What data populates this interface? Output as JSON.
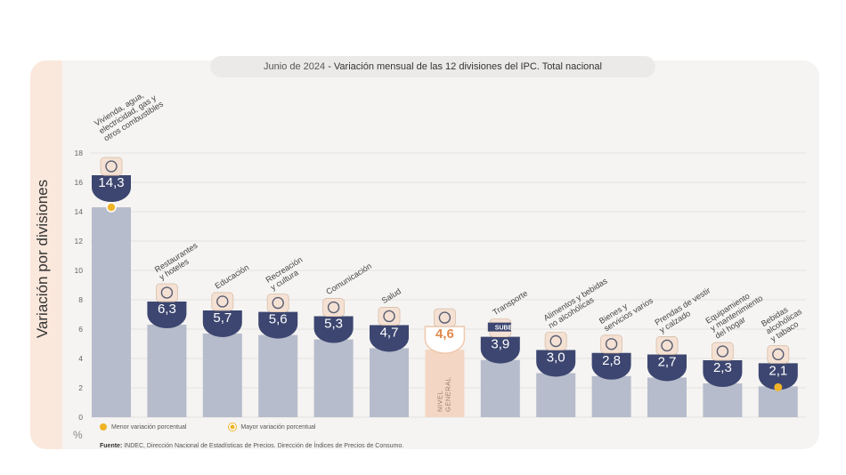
{
  "chart_data": {
    "type": "bar",
    "title_date": "Junio de 2024",
    "title_rest": " - Variación mensual de las 12 divisiones del IPC. Total nacional",
    "ylabel": "Variación por divisiones",
    "yunit": "%",
    "ylim": [
      0,
      18
    ],
    "yticks": [
      "0",
      "2",
      "4",
      "6",
      "8",
      "10",
      "12",
      "14",
      "16",
      "18"
    ],
    "categories": [
      {
        "label": "Vivienda, agua,|electricidad, gas y|otros combustibles",
        "value": 14.3,
        "display": "14,3",
        "icon": "lightbulb-icon",
        "marker": "top"
      },
      {
        "label": "Restaurantes|y hoteles",
        "value": 6.3,
        "display": "6,3",
        "icon": "tableware-icon"
      },
      {
        "label": "Educación",
        "value": 5.7,
        "display": "5,7",
        "icon": "notebook-icon"
      },
      {
        "label": "Recreación|y cultura",
        "value": 5.6,
        "display": "5,6",
        "icon": "umbrella-icon"
      },
      {
        "label": "Comunicación",
        "value": 5.3,
        "display": "5,3",
        "icon": "phone-icon"
      },
      {
        "label": "Salud",
        "value": 4.7,
        "display": "4,7",
        "icon": "medical-cross-icon"
      },
      {
        "label": "",
        "value": 4.6,
        "display": "4,6",
        "icon": "basket-icon",
        "highlight": true,
        "inner_label": "NIVEL|GENERAL"
      },
      {
        "label": "Transporte",
        "value": 3.9,
        "display": "3,9",
        "icon": "bus-icon",
        "icon_text": "SUBE"
      },
      {
        "label": "Alimentos y bebidas|no alcohólicas",
        "value": 3.0,
        "display": "3,0",
        "icon": "food-icon"
      },
      {
        "label": "Bienes y|servicios varios",
        "value": 2.8,
        "display": "2,8",
        "icon": "comb-scissors-icon"
      },
      {
        "label": "Prendas de vestir|y calzado",
        "value": 2.7,
        "display": "2,7",
        "icon": "clothing-icon"
      },
      {
        "label": "Equipamiento|y mantenimiento|del hogar",
        "value": 2.3,
        "display": "2,3",
        "icon": "appliance-icon"
      },
      {
        "label": "Bebidas|alcohólicas|y tabaco",
        "value": 2.1,
        "display": "2,1",
        "icon": "bottles-icon",
        "marker": "bottom"
      }
    ],
    "legend": {
      "min": "Menor variación porcentual",
      "max": "Mayor variación porcentual"
    },
    "colors": {
      "bar": "#b6bccb",
      "bar_highlight": "#f3d7c4",
      "badge": "#3c4670",
      "badge_highlight": "#ffffff",
      "badge_highlight_text": "#e08a4c",
      "marker": "#f0b428"
    }
  },
  "source": {
    "label": "Fuente:",
    "text": " INDEC, Dirección Nacional de Estadísticas de Precios. Dirección de Índices de Precios de Consumo."
  }
}
